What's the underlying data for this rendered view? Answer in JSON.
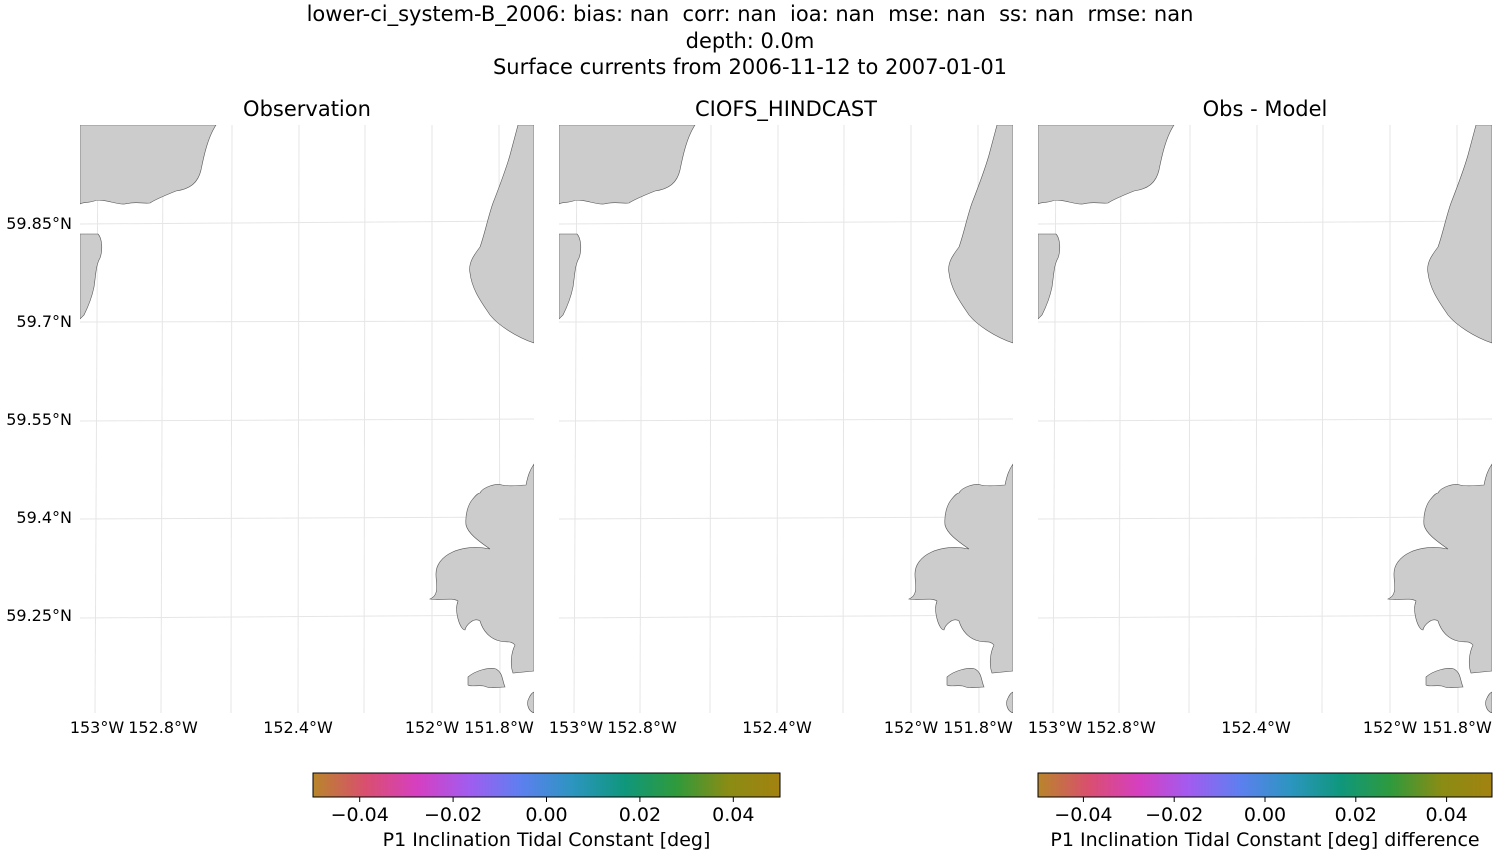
{
  "title": {
    "line1": "lower-ci_system-B_2006: bias: nan  corr: nan  ioa: nan  mse: nan  ss: nan  rmse: nan",
    "line2": "depth: 0.0m",
    "line3": "Surface currents from 2006-11-12 to 2007-01-01"
  },
  "panels": [
    {
      "title": "Observation"
    },
    {
      "title": "CIOFS_HINDCAST"
    },
    {
      "title": "Obs - Model"
    }
  ],
  "map": {
    "lat_labels": [
      "59.85°N",
      "59.7°N",
      "59.55°N",
      "59.4°N",
      "59.25°N"
    ],
    "lon_labels": [
      "153°W",
      "152.8°W",
      "152.4°W",
      "152°W",
      "151.8°W"
    ],
    "land_color": "#cccccc",
    "ocean_color": "#ffffff",
    "gridline_color": "#e6e6e6"
  },
  "colorbars": [
    {
      "label": "P1 Inclination Tidal Constant [deg]",
      "ticks": [
        "−0.04",
        "−0.02",
        "0.00",
        "0.02",
        "0.04"
      ],
      "vmin": -0.05,
      "vmax": 0.05
    },
    {
      "label": "P1 Inclination Tidal Constant [deg] difference",
      "ticks": [
        "−0.04",
        "−0.02",
        "0.00",
        "0.02",
        "0.04"
      ],
      "vmin": -0.05,
      "vmax": 0.05
    }
  ],
  "colormap": [
    "#b8862a",
    "#d94f6e",
    "#d63fc0",
    "#a15cf0",
    "#5d7ff0",
    "#2c95c0",
    "#0f977c",
    "#2f9a3c",
    "#8a8c14",
    "#a38210"
  ]
}
